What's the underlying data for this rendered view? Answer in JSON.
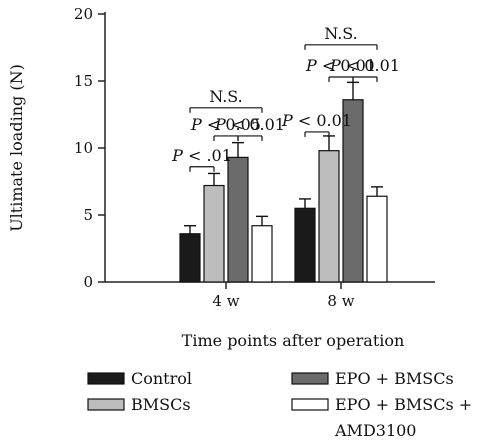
{
  "chart_data": {
    "type": "bar",
    "xlabel": "Time points after operation",
    "ylabel": "Ultimate loading (N)",
    "ylim": [
      0,
      20
    ],
    "yticks": [
      0,
      5,
      10,
      15,
      20
    ],
    "categories": [
      "4 w",
      "8 w"
    ],
    "series": [
      {
        "name": "Control",
        "color": "#1a1a1a",
        "values": [
          3.6,
          5.5
        ],
        "errors": [
          0.6,
          0.7
        ]
      },
      {
        "name": "BMSCs",
        "color": "#bdbdbd",
        "values": [
          7.2,
          9.8
        ],
        "errors": [
          0.9,
          1.1
        ]
      },
      {
        "name": "EPO + BMSCs",
        "color": "#6b6b6b",
        "values": [
          9.3,
          13.6
        ],
        "errors": [
          1.1,
          1.3
        ]
      },
      {
        "name": "EPO + BMSCs + AMD3100",
        "color": "#ffffff",
        "values": [
          4.2,
          6.4
        ],
        "errors": [
          0.7,
          0.7
        ]
      }
    ],
    "annotations": [
      {
        "category": 0,
        "from": 0,
        "to": 1,
        "y": 8.6,
        "text": "P < .01"
      },
      {
        "category": 0,
        "from": 1,
        "to": 2,
        "y": 10.9,
        "text": "P < 0.05"
      },
      {
        "category": 0,
        "from": 2,
        "to": 3,
        "y": 10.9,
        "text": "P < 0.01"
      },
      {
        "category": 0,
        "from": 0,
        "to": 3,
        "y": 13.0,
        "text": "N.S."
      },
      {
        "category": 1,
        "from": 0,
        "to": 1,
        "y": 11.2,
        "text": "P < 0.01"
      },
      {
        "category": 1,
        "from": 1,
        "to": 2,
        "y": 15.3,
        "text": "P < 0.01"
      },
      {
        "category": 1,
        "from": 2,
        "to": 3,
        "y": 15.3,
        "text": "P < 0.01"
      },
      {
        "category": 1,
        "from": 0,
        "to": 3,
        "y": 17.7,
        "text": "N.S."
      }
    ],
    "legend": {
      "position": "bottom",
      "items": [
        {
          "label": "Control",
          "series": 0
        },
        {
          "label": "BMSCs",
          "series": 1
        },
        {
          "label": "EPO + BMSCs",
          "series": 2
        },
        {
          "label": "EPO + BMSCs +",
          "label2": "AMD3100",
          "series": 3
        }
      ]
    }
  }
}
